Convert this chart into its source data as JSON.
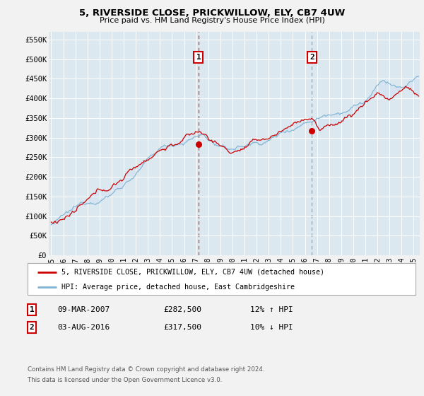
{
  "title": "5, RIVERSIDE CLOSE, PRICKWILLOW, ELY, CB7 4UW",
  "subtitle": "Price paid vs. HM Land Registry's House Price Index (HPI)",
  "ylim": [
    0,
    570000
  ],
  "xlim_start": 1994.8,
  "xlim_end": 2025.5,
  "yticks": [
    0,
    50000,
    100000,
    150000,
    200000,
    250000,
    300000,
    350000,
    400000,
    450000,
    500000,
    550000
  ],
  "ytick_labels": [
    "£0",
    "£50K",
    "£100K",
    "£150K",
    "£200K",
    "£250K",
    "£300K",
    "£350K",
    "£400K",
    "£450K",
    "£500K",
    "£550K"
  ],
  "xticks": [
    1995,
    1996,
    1997,
    1998,
    1999,
    2000,
    2001,
    2002,
    2003,
    2004,
    2005,
    2006,
    2007,
    2008,
    2009,
    2010,
    2011,
    2012,
    2013,
    2014,
    2015,
    2016,
    2017,
    2018,
    2019,
    2020,
    2021,
    2022,
    2023,
    2024,
    2025
  ],
  "hpi_color": "#7fb3d3",
  "price_color": "#cc0000",
  "bg_color": "#f2f2f2",
  "plot_bg_color": "#dce8f0",
  "grid_color": "#ffffff",
  "fill_color": "#c8dff0",
  "marker1_x": 2007.19,
  "marker1_y": 282500,
  "marker2_x": 2016.58,
  "marker2_y": 317500,
  "legend_line1": "5, RIVERSIDE CLOSE, PRICKWILLOW, ELY, CB7 4UW (detached house)",
  "legend_line2": "HPI: Average price, detached house, East Cambridgeshire",
  "table_row1": [
    "1",
    "09-MAR-2007",
    "£282,500",
    "12% ↑ HPI"
  ],
  "table_row2": [
    "2",
    "03-AUG-2016",
    "£317,500",
    "10% ↓ HPI"
  ],
  "footnote1": "Contains HM Land Registry data © Crown copyright and database right 2024.",
  "footnote2": "This data is licensed under the Open Government Licence v3.0."
}
